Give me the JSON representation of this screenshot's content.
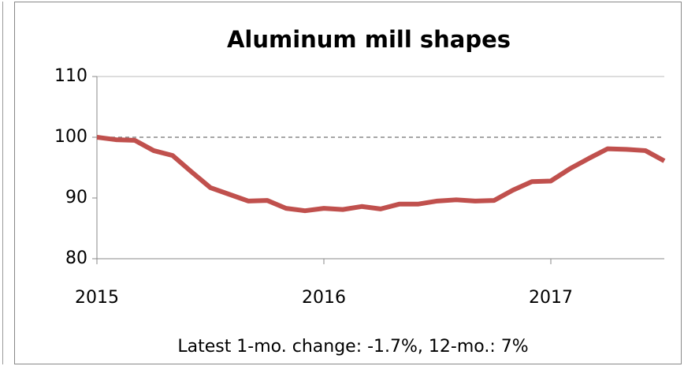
{
  "chart_data": {
    "type": "line",
    "title": "Aluminum mill shapes",
    "categories": [
      "2015",
      null,
      null,
      null,
      null,
      null,
      null,
      null,
      null,
      null,
      null,
      null,
      "2016",
      null,
      null,
      null,
      null,
      null,
      null,
      null,
      null,
      null,
      null,
      null,
      "2017",
      null,
      null,
      null,
      null,
      null,
      null
    ],
    "series": [
      {
        "name": "Aluminum mill shapes",
        "color": "#c0504d",
        "values": [
          100,
          99.6,
          99.5,
          97.8,
          97.0,
          94.3,
          91.7,
          90.6,
          89.5,
          89.6,
          88.3,
          87.9,
          88.3,
          88.1,
          88.6,
          88.2,
          89.0,
          89.0,
          89.5,
          89.7,
          89.5,
          89.6,
          91.3,
          92.7,
          92.8,
          94.8,
          96.5,
          98.1,
          98.0,
          97.8,
          96.1
        ]
      }
    ],
    "ylim": [
      80,
      110
    ],
    "yticks": [
      80,
      90,
      100,
      110
    ],
    "reference_line": 100,
    "annotation": "Latest 1-mo. change: -1.7%, 12-mo.: 7%"
  }
}
